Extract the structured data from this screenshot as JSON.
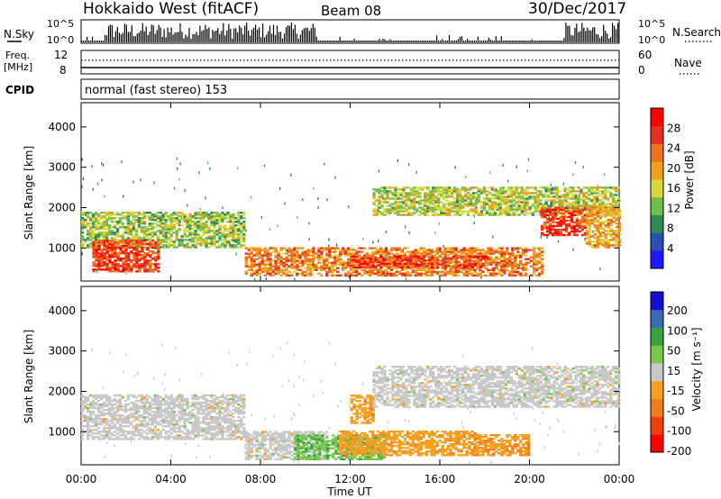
{
  "header": {
    "site": "Hokkaido West (fitACF)",
    "beam": "Beam 08",
    "date": "30/Dec/2017"
  },
  "strips": {
    "nsky_label": "N.Sky",
    "nsky_ticks": [
      "10^5",
      "10^0"
    ],
    "nsearch_label": "N.Search",
    "nsearch_ticks": [
      "10^5",
      "10^0"
    ],
    "freq_label_line1": "Freq.",
    "freq_label_line2": "[MHz]",
    "freq_ticks": [
      "12",
      "8"
    ],
    "nave_label": "Nave",
    "nave_ticks": [
      "60",
      "0"
    ],
    "cpid_label": "CPID",
    "cpid_value": "normal (fast stereo) 153"
  },
  "x_axis": {
    "label": "Time UT",
    "ticks": [
      "00:00",
      "04:00",
      "08:00",
      "12:00",
      "16:00",
      "20:00",
      "00:00"
    ]
  },
  "colors": {
    "power": [
      "#1a1aff",
      "#2b4fb0",
      "#2e8a57",
      "#6fbf4a",
      "#d8d83a",
      "#f0a020",
      "#f07020",
      "#e83020",
      "#ff0000"
    ],
    "velocity": [
      "#ff0000",
      "#f04010",
      "#f07d20",
      "#f5a020",
      "#c8c8c8",
      "#78c850",
      "#3aa040",
      "#3a6ab0",
      "#1010d0"
    ]
  },
  "chart_data": [
    {
      "type": "heatmap",
      "title": "",
      "ylabel": "Slant Range [km]",
      "xlabel": "",
      "ylim": [
        180,
        4600
      ],
      "y_ticks": [
        "4000",
        "3000",
        "2000",
        "1000"
      ],
      "colorbar_label": "Power [dB]",
      "colorbar_ticks": [
        "28",
        "24",
        "20",
        "16",
        "12",
        "8",
        "4"
      ],
      "colorbar_range": [
        0,
        32
      ],
      "regions": [
        {
          "t0": 0.0,
          "t1": 7.3,
          "r0": 1000,
          "r1": 1900,
          "value": 14
        },
        {
          "t0": 0.5,
          "t1": 3.5,
          "r0": 400,
          "r1": 1200,
          "value": 26
        },
        {
          "t0": 7.3,
          "t1": 20.5,
          "r0": 300,
          "r1": 1000,
          "value": 22
        },
        {
          "t0": 12.0,
          "t1": 18.0,
          "r0": 500,
          "r1": 800,
          "value": 26
        },
        {
          "t0": 13.0,
          "t1": 24.0,
          "r0": 1800,
          "r1": 2500,
          "value": 15
        },
        {
          "t0": 20.5,
          "t1": 22.5,
          "r0": 1300,
          "r1": 2000,
          "value": 26
        },
        {
          "t0": 22.5,
          "t1": 24.0,
          "r0": 1000,
          "r1": 2000,
          "value": 20
        }
      ]
    },
    {
      "type": "heatmap",
      "title": "",
      "ylabel": "Slant Range [km]",
      "xlabel": "",
      "ylim": [
        180,
        4600
      ],
      "y_ticks": [
        "4000",
        "3000",
        "2000",
        "1000"
      ],
      "colorbar_label": "Velocity [m s⁻¹]",
      "colorbar_ticks": [
        "200",
        "100",
        "50",
        "15",
        "-15",
        "-50",
        "-100",
        "-200"
      ],
      "colorbar_range": [
        -250,
        250
      ],
      "regions": [
        {
          "t0": 0.0,
          "t1": 7.3,
          "r0": 800,
          "r1": 1900,
          "value": 0
        },
        {
          "t0": 7.3,
          "t1": 11.0,
          "r0": 300,
          "r1": 1000,
          "value": 0
        },
        {
          "t0": 9.5,
          "t1": 13.5,
          "r0": 300,
          "r1": 900,
          "value": 70
        },
        {
          "t0": 11.5,
          "t1": 17.5,
          "r0": 400,
          "r1": 1000,
          "value": -60
        },
        {
          "t0": 12.0,
          "t1": 13.0,
          "r0": 1200,
          "r1": 1900,
          "value": -60
        },
        {
          "t0": 13.0,
          "t1": 24.0,
          "r0": 1600,
          "r1": 2600,
          "value": 0
        },
        {
          "t0": 17.5,
          "t1": 20.0,
          "r0": 400,
          "r1": 900,
          "value": -70
        }
      ]
    }
  ]
}
